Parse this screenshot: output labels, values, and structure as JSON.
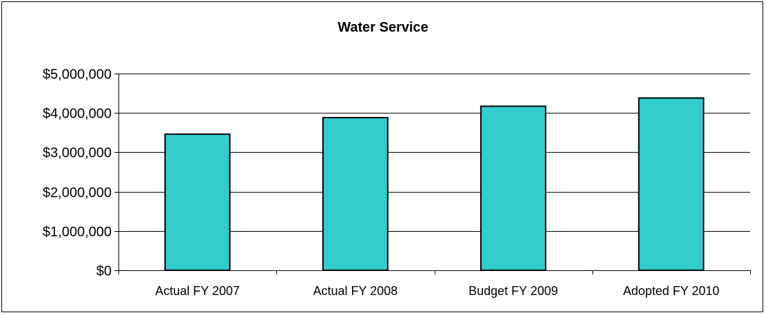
{
  "chart_data": {
    "type": "bar",
    "title": "Water Service",
    "xlabel": "",
    "ylabel": "",
    "categories": [
      "Actual FY 2007",
      "Actual FY 2008",
      "Budget FY 2009",
      "Adopted FY 2010"
    ],
    "values": [
      3460000,
      3880000,
      4170000,
      4380000
    ],
    "ylim": [
      0,
      5000000
    ],
    "yticks": [
      0,
      1000000,
      2000000,
      3000000,
      4000000,
      5000000
    ],
    "ytick_labels": [
      "$0",
      "$1,000,000",
      "$2,000,000",
      "$3,000,000",
      "$4,000,000",
      "$5,000,000"
    ],
    "grid": true,
    "legend": "none",
    "bar_color": "#33CCCC",
    "bar_edge_color": "#000000"
  }
}
